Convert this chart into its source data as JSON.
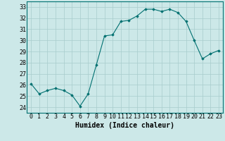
{
  "x": [
    0,
    1,
    2,
    3,
    4,
    5,
    6,
    7,
    8,
    9,
    10,
    11,
    12,
    13,
    14,
    15,
    16,
    17,
    18,
    19,
    20,
    21,
    22,
    23
  ],
  "y": [
    26.1,
    25.2,
    25.5,
    25.7,
    25.5,
    25.1,
    24.1,
    25.2,
    27.8,
    30.4,
    30.5,
    31.7,
    31.8,
    32.2,
    32.8,
    32.8,
    32.6,
    32.8,
    32.5,
    31.7,
    30.0,
    28.35,
    28.8,
    29.1
  ],
  "line_color": "#007070",
  "marker": "D",
  "marker_size": 1.8,
  "bg_color": "#cce8e8",
  "grid_color": "#a8cccc",
  "xlabel": "Humidex (Indice chaleur)",
  "xlabel_fontsize": 7,
  "tick_fontsize": 6,
  "xlim": [
    -0.5,
    23.5
  ],
  "ylim": [
    23.5,
    33.5
  ],
  "yticks": [
    24,
    25,
    26,
    27,
    28,
    29,
    30,
    31,
    32,
    33
  ],
  "xticks": [
    0,
    1,
    2,
    3,
    4,
    5,
    6,
    7,
    8,
    9,
    10,
    11,
    12,
    13,
    14,
    15,
    16,
    17,
    18,
    19,
    20,
    21,
    22,
    23
  ]
}
